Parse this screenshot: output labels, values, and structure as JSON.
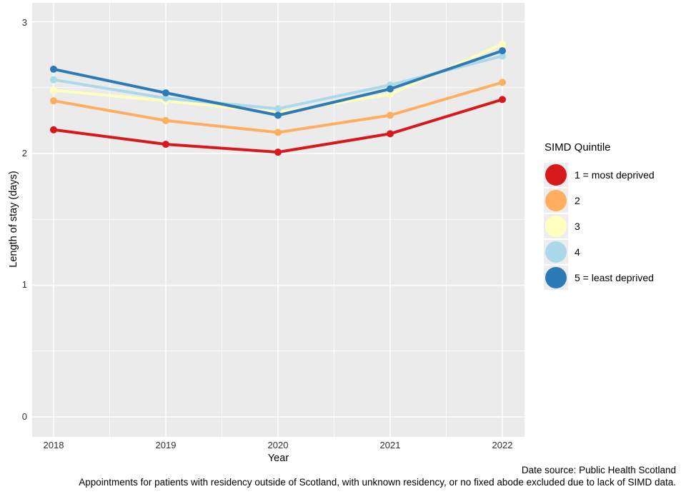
{
  "figure": {
    "x_axis_title": "Year",
    "y_axis_title": "Length of stay (days)",
    "caption_line1": "Date source: Public Health Scotland",
    "caption_line2": "Appointments for patients with residency outside of Scotland, with unknown residency, or no fixed abode excluded due to lack of SIMD data."
  },
  "legend": {
    "title": "SIMD Quintile",
    "items": [
      {
        "label": "1 = most deprived",
        "color": "#D7191C"
      },
      {
        "label": "2",
        "color": "#FDAE61"
      },
      {
        "label": "3",
        "color": "#FFFFBF"
      },
      {
        "label": "4",
        "color": "#ABD9E9"
      },
      {
        "label": "5 = least deprived",
        "color": "#2C7BB6"
      }
    ]
  },
  "chart_data": {
    "type": "line",
    "title": "",
    "xlabel": "Year",
    "ylabel": "Length of stay (days)",
    "x": [
      2018,
      2019,
      2020,
      2021,
      2022
    ],
    "x_tick_labels": [
      "2018",
      "2019",
      "2020",
      "2021",
      "2022"
    ],
    "y_tick_labels": [
      "0",
      "1",
      "2",
      "3"
    ],
    "y_ticks": [
      0,
      1,
      2,
      3
    ],
    "y_minor_ticks": [
      0.5,
      1.5,
      2.5
    ],
    "ylim": [
      -0.2,
      3.15
    ],
    "grid": true,
    "legend_position": "right",
    "legend_title": "SIMD Quintile",
    "series": [
      {
        "name": "1 = most deprived",
        "color": "#D7191C",
        "values": [
          2.18,
          2.07,
          2.01,
          2.15,
          2.41
        ]
      },
      {
        "name": "2",
        "color": "#FDAE61",
        "values": [
          2.4,
          2.25,
          2.16,
          2.29,
          2.54
        ]
      },
      {
        "name": "3",
        "color": "#FFFFBF",
        "values": [
          2.48,
          2.4,
          2.31,
          2.45,
          2.83
        ]
      },
      {
        "name": "4",
        "color": "#ABD9E9",
        "values": [
          2.56,
          2.42,
          2.34,
          2.52,
          2.74
        ]
      },
      {
        "name": "5 = least deprived",
        "color": "#2C7BB6",
        "values": [
          2.64,
          2.46,
          2.29,
          2.49,
          2.78
        ]
      }
    ]
  },
  "colors": {
    "panel_bg": "#EBEBEB",
    "grid": "#FFFFFF",
    "tick_text": "#303030",
    "legend_key_bg": "#EDEDED"
  }
}
